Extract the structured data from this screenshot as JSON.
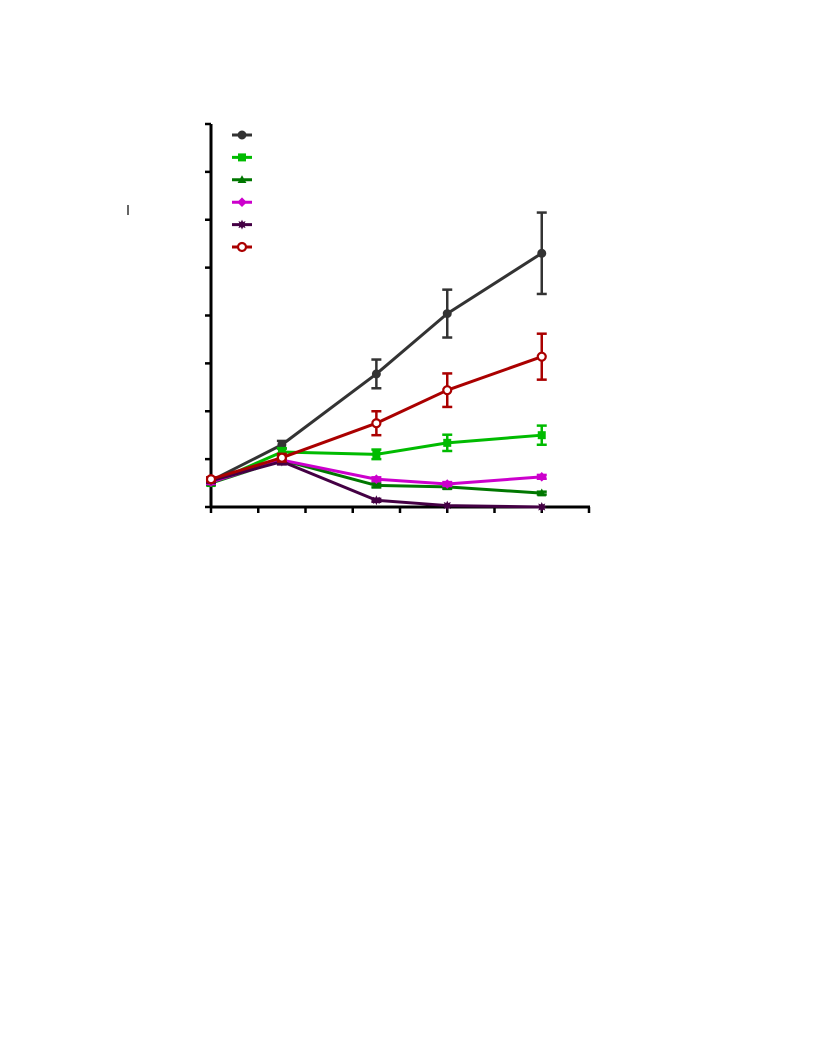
{
  "chart_data": {
    "type": "line",
    "title": "",
    "xlabel": "",
    "ylabel": "",
    "x_ticks": [
      0,
      1,
      2,
      3,
      4,
      5,
      6,
      7,
      8
    ],
    "y_ticks": [
      0,
      1,
      2,
      3,
      4,
      5,
      6,
      7,
      8
    ],
    "xlim": [
      0,
      8
    ],
    "ylim": [
      0,
      8
    ],
    "grid": false,
    "legend": "top-left",
    "tick_labels_visible": false,
    "series": [
      {
        "key": "s1",
        "color": "#333333",
        "marker": "circle-filled",
        "x": [
          0,
          1.5,
          3.5,
          5,
          7
        ],
        "y": [
          0.55,
          1.3,
          2.78,
          4.04,
          5.3
        ],
        "err": [
          0.05,
          0.08,
          0.3,
          0.5,
          0.85
        ]
      },
      {
        "key": "s2",
        "color": "#00bb00",
        "marker": "square",
        "x": [
          0,
          1.5,
          3.5,
          5,
          7
        ],
        "y": [
          0.5,
          1.15,
          1.1,
          1.34,
          1.5
        ],
        "err": [
          0.05,
          0.08,
          0.1,
          0.17,
          0.2
        ]
      },
      {
        "key": "s3",
        "color": "#007700",
        "marker": "triangle",
        "x": [
          0,
          1.5,
          3.5,
          5,
          7
        ],
        "y": [
          0.5,
          0.98,
          0.45,
          0.42,
          0.29
        ],
        "err": [
          0.04,
          0.06,
          0.04,
          0.04,
          0.03
        ]
      },
      {
        "key": "s4",
        "color": "#cc00cc",
        "marker": "diamond",
        "x": [
          0,
          1.5,
          3.5,
          5,
          7
        ],
        "y": [
          0.52,
          0.98,
          0.58,
          0.48,
          0.63
        ],
        "err": [
          0.04,
          0.06,
          0.04,
          0.04,
          0.04
        ]
      },
      {
        "key": "s5",
        "color": "#440044",
        "marker": "star",
        "x": [
          0,
          1.5,
          3.5,
          5,
          7
        ],
        "y": [
          0.55,
          0.95,
          0.14,
          0.03,
          0.0
        ],
        "err": [
          0.04,
          0.06,
          0.03,
          0.02,
          0.01
        ]
      },
      {
        "key": "s6",
        "color": "#aa0000",
        "marker": "circle-open",
        "x": [
          0,
          1.5,
          3.5,
          5,
          7
        ],
        "y": [
          0.58,
          1.03,
          1.75,
          2.44,
          3.14
        ],
        "err": [
          0.04,
          0.08,
          0.25,
          0.35,
          0.48
        ]
      }
    ]
  }
}
